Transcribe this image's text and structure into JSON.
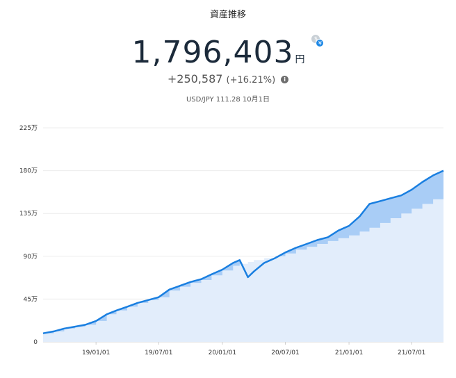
{
  "header": {
    "title": "資産推移",
    "total_value": "1,796,403",
    "unit": "円",
    "change": "+250,587",
    "change_pct": "(+16.21%)",
    "fx_label": "USD/JPY 111.28 10月1日"
  },
  "icons": {
    "currency": "currency-exchange-icon",
    "info": "info-icon"
  },
  "colors": {
    "line": "#1a7fe0",
    "area_light": "#e2edfb",
    "area_mid": "#a9cdf6"
  },
  "chart_data": {
    "type": "area",
    "title": "",
    "xlabel": "",
    "ylabel": "",
    "y_unit": "万",
    "ylim": [
      0,
      225
    ],
    "y_ticks": [
      0,
      45,
      90,
      135,
      180,
      225
    ],
    "y_tick_labels": [
      "0",
      "45万",
      "90万",
      "135万",
      "180万",
      "225万"
    ],
    "x_range": [
      "2018-08-01",
      "2021-10-01"
    ],
    "x_ticks": [
      "2019-01-01",
      "2019-07-01",
      "2020-01-01",
      "2020-07-01",
      "2021-01-01",
      "2021-07-01"
    ],
    "x_tick_labels": [
      "19/01/01",
      "19/07/01",
      "20/01/01",
      "20/07/01",
      "21/01/01",
      "21/07/01"
    ],
    "grid": true,
    "series": [
      {
        "role": "market_value",
        "x": [
          "2018-08-01",
          "2018-09-01",
          "2018-10-01",
          "2018-11-01",
          "2018-12-01",
          "2019-01-01",
          "2019-02-01",
          "2019-03-01",
          "2019-04-01",
          "2019-05-01",
          "2019-06-01",
          "2019-07-01",
          "2019-08-01",
          "2019-09-01",
          "2019-10-01",
          "2019-11-01",
          "2019-12-01",
          "2020-01-01",
          "2020-02-01",
          "2020-02-20",
          "2020-03-15",
          "2020-04-01",
          "2020-05-01",
          "2020-06-01",
          "2020-07-01",
          "2020-08-01",
          "2020-09-01",
          "2020-10-01",
          "2020-11-01",
          "2020-12-01",
          "2021-01-01",
          "2021-02-01",
          "2021-03-01",
          "2021-04-01",
          "2021-05-01",
          "2021-06-01",
          "2021-07-01",
          "2021-08-01",
          "2021-09-01",
          "2021-10-01"
        ],
        "y": [
          9,
          11,
          14,
          16,
          18,
          22,
          29,
          33,
          37,
          41,
          44,
          47,
          55,
          59,
          63,
          66,
          71,
          76,
          83,
          86,
          68,
          74,
          83,
          88,
          94,
          99,
          103,
          107,
          110,
          117,
          122,
          132,
          145,
          148,
          151,
          154,
          160,
          168,
          175,
          180
        ]
      },
      {
        "role": "invested",
        "x": [
          "2018-08-01",
          "2018-09-01",
          "2018-10-01",
          "2018-11-01",
          "2018-12-01",
          "2019-01-01",
          "2019-02-01",
          "2019-03-01",
          "2019-04-01",
          "2019-05-01",
          "2019-06-01",
          "2019-07-01",
          "2019-08-01",
          "2019-09-01",
          "2019-10-01",
          "2019-11-01",
          "2019-12-01",
          "2020-01-01",
          "2020-02-01",
          "2020-02-20",
          "2020-03-15",
          "2020-04-01",
          "2020-05-01",
          "2020-06-01",
          "2020-07-01",
          "2020-08-01",
          "2020-09-01",
          "2020-10-01",
          "2020-11-01",
          "2020-12-01",
          "2021-01-01",
          "2021-02-01",
          "2021-03-01",
          "2021-04-01",
          "2021-05-01",
          "2021-06-01",
          "2021-07-01",
          "2021-08-01",
          "2021-09-01",
          "2021-10-01"
        ],
        "y": [
          9,
          11,
          14,
          16,
          18,
          22,
          29,
          33,
          37,
          41,
          44,
          47,
          54,
          58,
          62,
          65,
          70,
          75,
          80,
          82,
          84,
          86,
          88,
          90,
          93,
          97,
          100,
          103,
          106,
          109,
          112,
          116,
          120,
          125,
          130,
          135,
          140,
          145,
          150,
          155
        ]
      }
    ]
  }
}
